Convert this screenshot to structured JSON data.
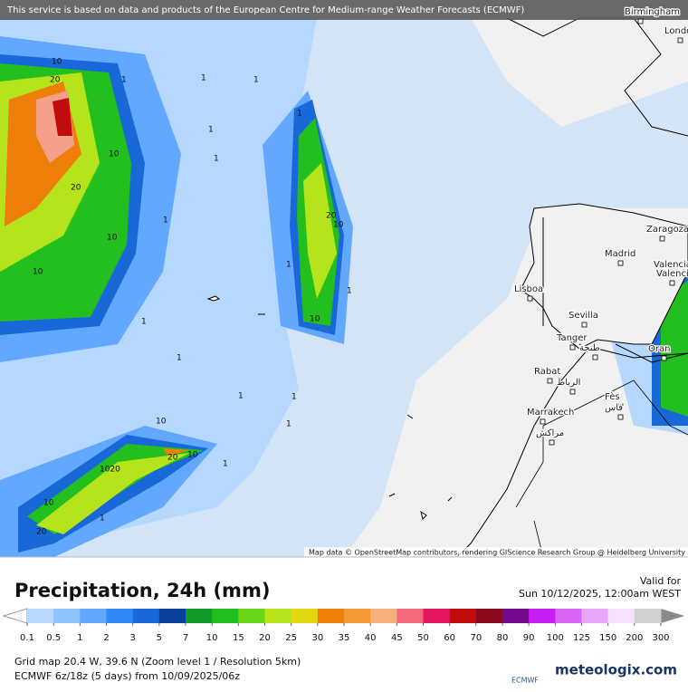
{
  "banner": "This service is based on data and products of the European Centre for Medium-range Weather Forecasts (ECMWF)",
  "cities": [
    "Birmingham",
    "London",
    "Zaragoza",
    "Madrid",
    "Valencia",
    "Valencia",
    "Lisboa",
    "Sevilla",
    "Tanger",
    "طنجة",
    "Oran",
    "Rabat",
    "الرباط",
    "Fès",
    "فاس",
    "Marrakech",
    "مراكش"
  ],
  "contour_labels": [
    "10",
    "20",
    "10",
    "20",
    "10",
    "10",
    "1",
    "1",
    "1",
    "1",
    "1",
    "1",
    "1",
    "20",
    "10",
    "1",
    "10",
    "1",
    "1",
    "1",
    "1",
    "10",
    "20",
    "10",
    "1020",
    "10",
    "1",
    "20",
    "1",
    "1",
    "1"
  ],
  "attribution": "Map data © OpenStreetMap contributors, rendering GIScience Research Group @ Heidelberg University",
  "title": "Precipitation, 24h (mm)",
  "valid_label": "Valid for",
  "valid_time": "Sun 10/12/2025, 12:00am WEST",
  "legend": {
    "ticks": [
      0.1,
      0.5,
      1,
      2,
      3,
      5,
      7,
      10,
      15,
      20,
      25,
      30,
      35,
      40,
      45,
      50,
      60,
      70,
      80,
      90,
      100,
      125,
      150,
      200,
      300
    ],
    "colors": [
      "#b6d8ff",
      "#90c4ff",
      "#62a8ff",
      "#2f8af5",
      "#1868d8",
      "#0b3f9c",
      "#0f9a2a",
      "#22bf1f",
      "#6ad61a",
      "#b5e31c",
      "#e3d70f",
      "#ee7f0a",
      "#f39a35",
      "#f6b07c",
      "#f46a7c",
      "#e5175f",
      "#c20c0c",
      "#8b0a1d",
      "#73098c",
      "#c21ff0",
      "#d966f5",
      "#e8a6f7",
      "#f5e2fa",
      "#d0d0d0"
    ]
  },
  "info_line1": "Grid map 20.4 W, 39.6 N (Zoom level 1 / Resolution 5km)",
  "info_line2": "ECMWF 6z/18z (5 days) from 10/09/2025/06z",
  "logo_small": "ECMWF",
  "logo_site": "meteologix.com"
}
